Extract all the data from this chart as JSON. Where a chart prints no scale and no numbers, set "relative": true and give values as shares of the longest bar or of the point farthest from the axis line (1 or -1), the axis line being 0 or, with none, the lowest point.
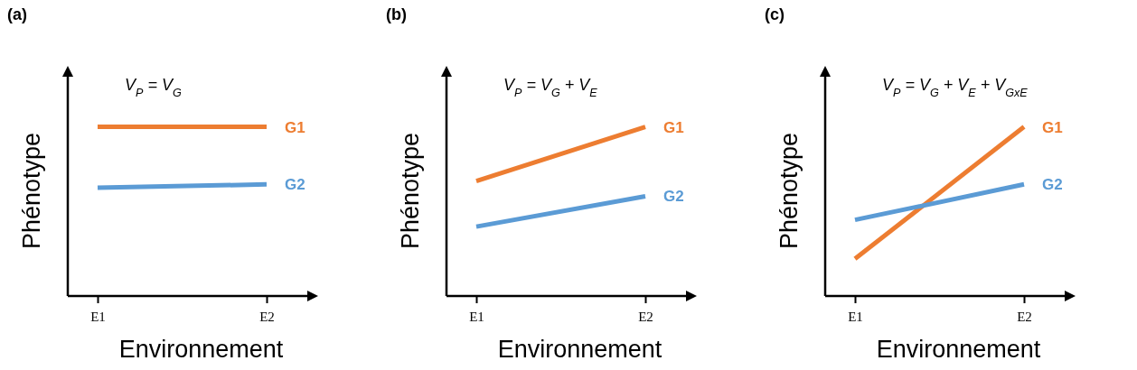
{
  "chart_data": [
    {
      "type": "line",
      "title": "(a)",
      "subtitle": "V$_{P}$ = V$_{G}$",
      "xlabel": "Environnement",
      "ylabel": "Phénotype",
      "categories": [
        "E1",
        "E2"
      ],
      "relative": true,
      "tick_labels": "x",
      "series": [
        {
          "name": "G1",
          "color": "#ed7d31",
          "values": [
            1,
            1
          ]
        },
        {
          "name": "G2",
          "color": "#5b9bd5",
          "values": [
            0.64,
            0.66
          ]
        }
      ]
    },
    {
      "type": "line",
      "title": "(b)",
      "subtitle": "V$_{P}$ = V$_{G}$ + V$_{E}$",
      "xlabel": "Environnement",
      "ylabel": "Phénotype",
      "categories": [
        "E1",
        "E2"
      ],
      "relative": true,
      "tick_labels": "x",
      "series": [
        {
          "name": "G1",
          "color": "#ed7d31",
          "values": [
            0.68,
            1
          ]
        },
        {
          "name": "G2",
          "color": "#5b9bd5",
          "values": [
            0.41,
            0.59
          ]
        }
      ]
    },
    {
      "type": "line",
      "title": "(c)",
      "subtitle": "V$_{P}$ = V$_{G}$ + V$_{E}$ + V$_{GxE}$",
      "xlabel": "Environnement",
      "ylabel": "Phénotype",
      "categories": [
        "E1",
        "E2"
      ],
      "relative": true,
      "tick_labels": "x",
      "series": [
        {
          "name": "G1",
          "color": "#ed7d31",
          "values": [
            0.22,
            1
          ]
        },
        {
          "name": "G2",
          "color": "#5b9bd5",
          "values": [
            0.45,
            0.66
          ]
        }
      ]
    }
  ]
}
